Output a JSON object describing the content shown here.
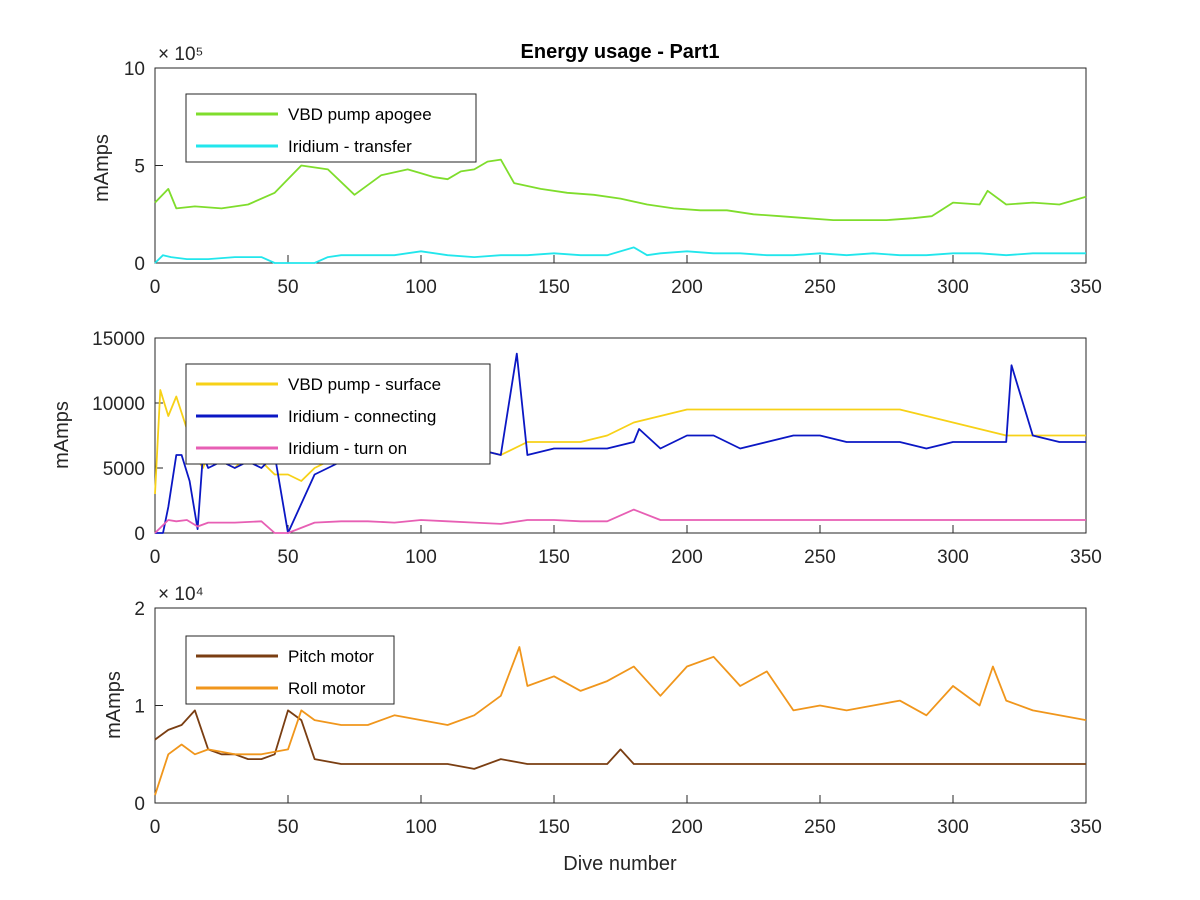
{
  "figure": {
    "title": "Energy usage - Part1",
    "xlabel": "Dive number"
  },
  "colors": {
    "vbd_apogee": "#7fdd2c",
    "iridium_transfer": "#22e6ec",
    "vbd_surface": "#f7d117",
    "iridium_connecting": "#0b17c4",
    "iridium_turn_on": "#e75fb4",
    "pitch_motor": "#7a3e12",
    "roll_motor": "#f0961c"
  },
  "chart_data": [
    {
      "type": "line",
      "ylabel": "mAmps",
      "multiplier": "× 10⁵",
      "xlim": [
        0,
        350
      ],
      "ylim": [
        0,
        1000000
      ],
      "xticks": [
        "0",
        "50",
        "100",
        "150",
        "200",
        "250",
        "300",
        "350"
      ],
      "yticks": [
        "0",
        "5",
        "10"
      ],
      "legend": "top-left",
      "series": [
        {
          "name": "VBD pump apogee",
          "color_key": "vbd_apogee",
          "x": [
            0,
            5,
            8,
            15,
            25,
            35,
            45,
            55,
            65,
            75,
            85,
            95,
            100,
            105,
            110,
            115,
            120,
            125,
            130,
            135,
            145,
            155,
            165,
            175,
            185,
            195,
            205,
            215,
            225,
            235,
            245,
            255,
            265,
            275,
            285,
            292,
            300,
            310,
            313,
            320,
            330,
            340,
            350
          ],
          "y": [
            310000,
            380000,
            280000,
            290000,
            280000,
            300000,
            360000,
            500000,
            480000,
            350000,
            450000,
            480000,
            460000,
            440000,
            430000,
            470000,
            480000,
            520000,
            530000,
            410000,
            380000,
            360000,
            350000,
            330000,
            300000,
            280000,
            270000,
            270000,
            250000,
            240000,
            230000,
            220000,
            220000,
            220000,
            230000,
            240000,
            310000,
            300000,
            370000,
            300000,
            310000,
            300000,
            340000
          ]
        },
        {
          "name": "Iridium - transfer",
          "color_key": "iridium_transfer",
          "x": [
            0,
            3,
            6,
            12,
            20,
            30,
            40,
            45,
            50,
            60,
            65,
            70,
            80,
            90,
            100,
            110,
            120,
            130,
            140,
            150,
            160,
            170,
            180,
            185,
            190,
            200,
            210,
            220,
            230,
            240,
            250,
            260,
            270,
            280,
            290,
            300,
            310,
            320,
            330,
            340,
            350
          ],
          "y": [
            0,
            40000,
            30000,
            20000,
            20000,
            30000,
            30000,
            0,
            0,
            0,
            30000,
            40000,
            40000,
            40000,
            60000,
            40000,
            30000,
            40000,
            40000,
            50000,
            40000,
            40000,
            80000,
            40000,
            50000,
            60000,
            50000,
            50000,
            40000,
            40000,
            50000,
            40000,
            50000,
            40000,
            40000,
            50000,
            50000,
            40000,
            50000,
            50000,
            50000
          ]
        }
      ]
    },
    {
      "type": "line",
      "ylabel": "mAmps",
      "xlim": [
        0,
        350
      ],
      "ylim": [
        0,
        15000
      ],
      "xticks": [
        "0",
        "50",
        "100",
        "150",
        "200",
        "250",
        "300",
        "350"
      ],
      "yticks": [
        "0",
        "5000",
        "10000",
        "15000"
      ],
      "legend": "top-left",
      "series": [
        {
          "name": "VBD pump - surface",
          "color_key": "vbd_surface",
          "x": [
            0,
            2,
            5,
            8,
            12,
            15,
            18,
            20,
            25,
            30,
            35,
            40,
            45,
            50,
            55,
            60,
            65,
            70,
            80,
            90,
            100,
            110,
            120,
            130,
            140,
            150,
            160,
            170,
            180,
            190,
            200,
            210,
            220,
            230,
            240,
            250,
            260,
            270,
            280,
            290,
            300,
            310,
            320,
            330,
            340,
            350
          ],
          "y": [
            3000,
            11000,
            9000,
            10500,
            8000,
            6000,
            5000,
            6000,
            5500,
            5000,
            6000,
            5500,
            4500,
            4500,
            4000,
            5000,
            5500,
            6000,
            6500,
            6000,
            6500,
            6000,
            6500,
            6000,
            7000,
            7000,
            7000,
            7500,
            8500,
            9000,
            9500,
            9500,
            9500,
            9500,
            9500,
            9500,
            9500,
            9500,
            9500,
            9000,
            8500,
            8000,
            7500,
            7500,
            7500,
            7500
          ]
        },
        {
          "name": "Iridium - connecting",
          "color_key": "iridium_connecting",
          "x": [
            0,
            3,
            5,
            8,
            10,
            13,
            16,
            18,
            20,
            25,
            30,
            35,
            40,
            45,
            50,
            60,
            70,
            80,
            90,
            100,
            110,
            120,
            130,
            136,
            140,
            150,
            160,
            170,
            180,
            182,
            190,
            200,
            210,
            220,
            230,
            240,
            250,
            260,
            270,
            280,
            290,
            300,
            310,
            320,
            322,
            330,
            340,
            350
          ],
          "y": [
            0,
            0,
            2000,
            6000,
            6000,
            4000,
            300,
            6000,
            5000,
            5500,
            5000,
            5500,
            5000,
            6000,
            0,
            4500,
            5500,
            5500,
            6000,
            6500,
            6500,
            6500,
            6000,
            13800,
            6000,
            6500,
            6500,
            6500,
            7000,
            8000,
            6500,
            7500,
            7500,
            6500,
            7000,
            7500,
            7500,
            7000,
            7000,
            7000,
            6500,
            7000,
            7000,
            7000,
            12900,
            7500,
            7000,
            7000
          ]
        },
        {
          "name": "Iridium - turn on",
          "color_key": "iridium_turn_on",
          "x": [
            0,
            5,
            8,
            12,
            16,
            20,
            30,
            40,
            45,
            50,
            60,
            70,
            80,
            90,
            100,
            110,
            120,
            130,
            140,
            150,
            160,
            170,
            180,
            190,
            200,
            210,
            220,
            230,
            240,
            250,
            260,
            270,
            280,
            290,
            300,
            310,
            320,
            330,
            340,
            350
          ],
          "y": [
            0,
            1000,
            900,
            1000,
            500,
            800,
            800,
            900,
            0,
            0,
            800,
            900,
            900,
            800,
            1000,
            900,
            800,
            700,
            1000,
            1000,
            900,
            900,
            1800,
            1000,
            1000,
            1000,
            1000,
            1000,
            1000,
            1000,
            1000,
            1000,
            1000,
            1000,
            1000,
            1000,
            1000,
            1000,
            1000,
            1000
          ]
        }
      ]
    },
    {
      "type": "line",
      "ylabel": "mAmps",
      "multiplier": "× 10⁴",
      "xlim": [
        0,
        350
      ],
      "ylim": [
        0,
        20000
      ],
      "xticks": [
        "0",
        "50",
        "100",
        "150",
        "200",
        "250",
        "300",
        "350"
      ],
      "yticks": [
        "0",
        "1",
        "2"
      ],
      "legend": "top-left",
      "series": [
        {
          "name": "Pitch motor",
          "color_key": "pitch_motor",
          "x": [
            0,
            5,
            10,
            15,
            20,
            25,
            30,
            35,
            40,
            45,
            50,
            55,
            60,
            70,
            80,
            90,
            100,
            110,
            120,
            130,
            140,
            150,
            160,
            170,
            175,
            180,
            190,
            200,
            210,
            220,
            230,
            240,
            250,
            260,
            270,
            280,
            290,
            300,
            310,
            320,
            330,
            340,
            350
          ],
          "y": [
            6500,
            7500,
            8000,
            9500,
            5500,
            5000,
            5000,
            4500,
            4500,
            5000,
            9500,
            8500,
            4500,
            4000,
            4000,
            4000,
            4000,
            4000,
            3500,
            4500,
            4000,
            4000,
            4000,
            4000,
            5500,
            4000,
            4000,
            4000,
            4000,
            4000,
            4000,
            4000,
            4000,
            4000,
            4000,
            4000,
            4000,
            4000,
            4000,
            4000,
            4000,
            4000,
            4000
          ]
        },
        {
          "name": "Roll motor",
          "color_key": "roll_motor",
          "x": [
            0,
            5,
            10,
            15,
            20,
            30,
            40,
            50,
            55,
            60,
            70,
            80,
            90,
            100,
            110,
            120,
            130,
            137,
            140,
            150,
            160,
            170,
            180,
            190,
            200,
            210,
            215,
            220,
            230,
            235,
            240,
            250,
            260,
            270,
            280,
            290,
            300,
            310,
            315,
            320,
            330,
            340,
            350
          ],
          "y": [
            800,
            5000,
            6000,
            5000,
            5500,
            5000,
            5000,
            5500,
            9500,
            8500,
            8000,
            8000,
            9000,
            8500,
            8000,
            9000,
            11000,
            16000,
            12000,
            13000,
            11500,
            12500,
            14000,
            11000,
            14000,
            15000,
            13500,
            12000,
            13500,
            11500,
            9500,
            10000,
            9500,
            10000,
            10500,
            9000,
            12000,
            10000,
            14000,
            10500,
            9500,
            9000,
            8500
          ]
        }
      ]
    }
  ]
}
